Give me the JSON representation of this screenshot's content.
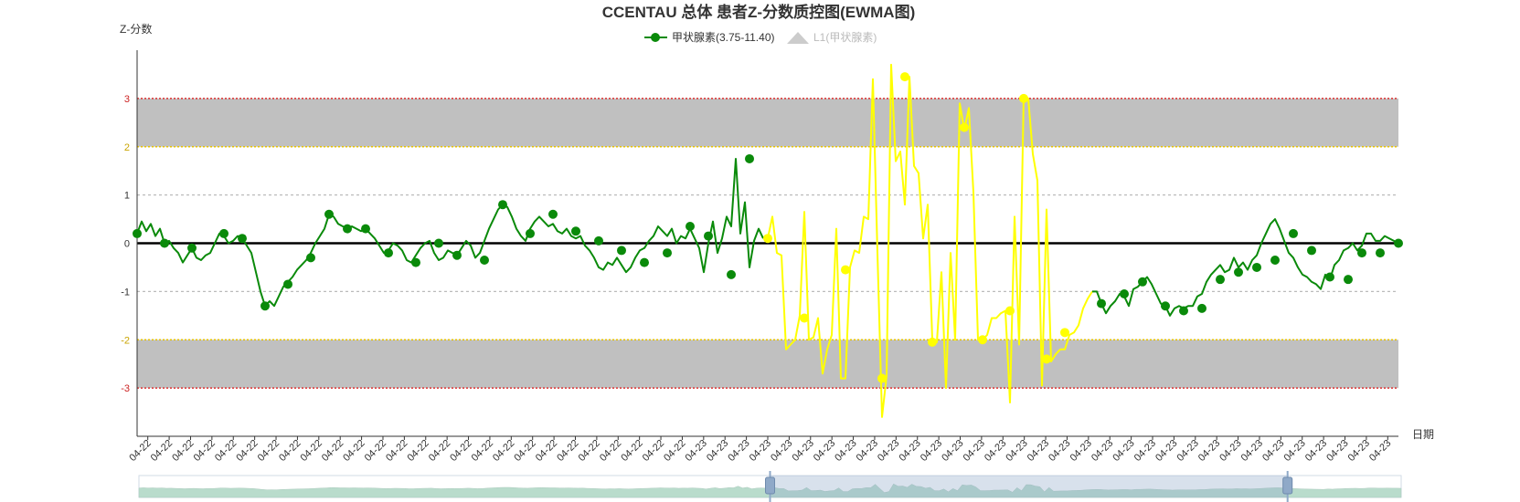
{
  "chart_data": {
    "type": "line",
    "title": "CCENTAU 总体 患者Z-分数质控图(EWMA图)",
    "ylabel": "Z-分数",
    "xlabel": "日期",
    "ylim": [
      -4,
      4
    ],
    "y_ticks": [
      -3,
      -2,
      -1,
      0,
      1,
      2,
      3
    ],
    "y_tick_labels": [
      "-3",
      "-2",
      "-1",
      "0",
      "1",
      "2",
      "3"
    ],
    "grid": "dashed horizontal at ±1; limit lines at ±2 (yellow) and ±3 (red)",
    "bands": [
      {
        "from": 2,
        "to": 3,
        "color": "#c0c0c0"
      },
      {
        "from": -3,
        "to": -2,
        "color": "#c0c0c0"
      }
    ],
    "limit_lines": [
      {
        "y": 3,
        "color": "#dd3333"
      },
      {
        "y": 2,
        "color": "#e6c200"
      },
      {
        "y": -2,
        "color": "#e6c200"
      },
      {
        "y": -3,
        "color": "#dd3333"
      }
    ],
    "center_line": {
      "y": 0,
      "color": "#000000"
    },
    "legend": {
      "placement": "top-center",
      "entries": [
        {
          "name": "甲状腺素(3.75-11.40)",
          "color": "#0a8a0a",
          "active": true
        },
        {
          "name": "L1(甲状腺素)",
          "color": "#cccccc",
          "active": false
        }
      ]
    },
    "x_tick_labels": [
      "04-22",
      "04-22",
      "04-22",
      "04-22",
      "04-22",
      "04-22",
      "04-22",
      "04-22",
      "04-22",
      "04-22",
      "04-22",
      "04-22",
      "04-22",
      "04-22",
      "04-22",
      "04-22",
      "04-22",
      "04-22",
      "04-22",
      "04-22",
      "04-22",
      "04-22",
      "04-22",
      "04-22",
      "04-22",
      "04-22",
      "04-23",
      "04-23",
      "04-23",
      "04-23",
      "04-23",
      "04-23",
      "04-23",
      "04-23",
      "04-23",
      "04-23",
      "04-23",
      "04-23",
      "04-23",
      "04-23",
      "04-23",
      "04-23",
      "04-23",
      "04-23",
      "04-23",
      "04-23",
      "04-23",
      "04-23",
      "04-23",
      "04-23",
      "04-23",
      "04-23",
      "04-23",
      "04-23",
      "04-23",
      "04-23",
      "04-23",
      "04-23",
      "04-23"
    ],
    "series": [
      {
        "name": "甲状腺素(3.75-11.40)",
        "color": "#0a8a0a",
        "values": [
          0.2,
          0.45,
          0.25,
          0.4,
          0.15,
          0.3,
          0.0,
          0.05,
          -0.1,
          -0.2,
          -0.4,
          -0.25,
          -0.1,
          -0.3,
          -0.35,
          -0.25,
          -0.2,
          0.0,
          0.2,
          0.15,
          0.0,
          0.05,
          0.15,
          0.1,
          -0.05,
          -0.2,
          -0.6,
          -1.0,
          -1.3,
          -1.2,
          -1.3,
          -1.1,
          -0.9,
          -0.8,
          -0.7,
          -0.55,
          -0.45,
          -0.35,
          -0.2,
          0.0,
          0.15,
          0.3,
          0.6,
          0.55,
          0.4,
          0.35,
          0.3,
          0.35,
          0.3,
          0.25,
          0.3,
          0.2,
          0.1,
          -0.05,
          -0.2,
          -0.15,
          0.0,
          -0.05,
          -0.15,
          -0.35,
          -0.4,
          -0.25,
          -0.1,
          0.0,
          0.05,
          -0.2,
          -0.35,
          -0.3,
          -0.15,
          -0.2,
          -0.25,
          -0.1,
          0.05,
          -0.05,
          -0.3,
          -0.2,
          0.05,
          0.3,
          0.5,
          0.7,
          0.8,
          0.75,
          0.55,
          0.3,
          0.15,
          0.05,
          0.3,
          0.45,
          0.55,
          0.45,
          0.35,
          0.4,
          0.25,
          0.2,
          0.3,
          0.15,
          0.1,
          0.15,
          -0.05,
          -0.15,
          -0.3,
          -0.5,
          -0.55,
          -0.4,
          -0.45,
          -0.3,
          -0.45,
          -0.6,
          -0.5,
          -0.3,
          -0.15,
          -0.1,
          0.05,
          0.15,
          0.35,
          0.25,
          0.15,
          0.3,
          0.0,
          0.15,
          0.1,
          0.3,
          0.1,
          -0.1,
          -0.6,
          0.0,
          0.45,
          -0.2,
          0.1,
          0.55,
          0.35,
          1.75,
          0.2,
          0.85,
          -0.5,
          0.05,
          0.3,
          0.1
        ]
      },
      {
        "name": "",
        "color": "#ffff00",
        "values": [
          0.1,
          0.55,
          -0.2,
          -0.25,
          -2.2,
          -2.1,
          -2.0,
          -1.5,
          0.65,
          -2.0,
          -1.95,
          -1.55,
          -2.7,
          -2.2,
          -1.9,
          0.3,
          -2.8,
          -2.8,
          -0.5,
          -0.15,
          -0.2,
          0.55,
          0.5,
          3.4,
          -0.2,
          -3.6,
          -2.75,
          3.7,
          1.7,
          1.9,
          0.8,
          3.45,
          1.6,
          1.45,
          0.1,
          0.8,
          -2.0,
          -2.05,
          -0.6,
          -3.0,
          -0.2,
          -2.0,
          2.9,
          2.35,
          2.8,
          1.05,
          -2.0,
          -2.0,
          -1.9,
          -1.55,
          -1.55,
          -1.45,
          -1.4,
          -3.3,
          0.55,
          -2.1,
          3.05,
          3.0,
          1.85,
          1.3,
          -2.95,
          0.7,
          -2.45,
          -2.3,
          -2.2,
          -2.2,
          -1.9,
          -1.85,
          -1.7,
          -1.35,
          -1.15,
          -1.0
        ]
      },
      {
        "name": "",
        "color": "#0a8a0a",
        "values": [
          -1.0,
          -1.25,
          -1.45,
          -1.3,
          -1.2,
          -1.05,
          -1.1,
          -1.3,
          -0.95,
          -0.9,
          -0.8,
          -0.7,
          -0.85,
          -1.05,
          -1.25,
          -1.3,
          -1.5,
          -1.35,
          -1.3,
          -1.35,
          -1.3,
          -1.3,
          -1.1,
          -1.05,
          -0.8,
          -0.65,
          -0.55,
          -0.45,
          -0.6,
          -0.55,
          -0.3,
          -0.5,
          -0.4,
          -0.55,
          -0.35,
          -0.25,
          0.0,
          0.2,
          0.4,
          0.5,
          0.3,
          0.05,
          -0.2,
          -0.3,
          -0.5,
          -0.65,
          -0.7,
          -0.8,
          -0.85,
          -0.95,
          -0.65,
          -0.75,
          -0.45,
          -0.35,
          -0.15,
          -0.1,
          0.0,
          -0.15,
          -0.05,
          0.2,
          0.2,
          0.05,
          0.05,
          0.15,
          0.1,
          0.05,
          0.0
        ]
      }
    ],
    "markers": [
      {
        "series": 0,
        "index": 0,
        "value": 0.2
      },
      {
        "series": 0,
        "index": 6,
        "value": 0.0
      },
      {
        "series": 0,
        "index": 12,
        "value": -0.1
      },
      {
        "series": 0,
        "index": 19,
        "value": 0.2
      },
      {
        "series": 0,
        "index": 23,
        "value": 0.1
      },
      {
        "series": 0,
        "index": 28,
        "value": -1.3
      },
      {
        "series": 0,
        "index": 33,
        "value": -0.85
      },
      {
        "series": 0,
        "index": 38,
        "value": -0.3
      },
      {
        "series": 0,
        "index": 42,
        "value": 0.6
      },
      {
        "series": 0,
        "index": 46,
        "value": 0.3
      },
      {
        "series": 0,
        "index": 50,
        "value": 0.3
      },
      {
        "series": 0,
        "index": 55,
        "value": -0.2
      },
      {
        "series": 0,
        "index": 61,
        "value": -0.4
      },
      {
        "series": 0,
        "index": 66,
        "value": 0.0
      },
      {
        "series": 0,
        "index": 70,
        "value": -0.25
      },
      {
        "series": 0,
        "index": 76,
        "value": -0.35
      },
      {
        "series": 0,
        "index": 80,
        "value": 0.8
      },
      {
        "series": 0,
        "index": 86,
        "value": 0.2
      },
      {
        "series": 0,
        "index": 91,
        "value": 0.6
      },
      {
        "series": 0,
        "index": 96,
        "value": 0.25
      },
      {
        "series": 0,
        "index": 101,
        "value": 0.05
      },
      {
        "series": 0,
        "index": 106,
        "value": -0.15
      },
      {
        "series": 0,
        "index": 111,
        "value": -0.4
      },
      {
        "series": 0,
        "index": 116,
        "value": -0.2
      },
      {
        "series": 0,
        "index": 121,
        "value": 0.35
      },
      {
        "series": 0,
        "index": 125,
        "value": 0.15
      },
      {
        "series": 0,
        "index": 130,
        "value": -0.65
      },
      {
        "series": 0,
        "index": 134,
        "value": 1.75
      },
      {
        "series": 1,
        "index": 0,
        "value": 0.1
      },
      {
        "series": 1,
        "index": 8,
        "value": -1.55
      },
      {
        "series": 1,
        "index": 17,
        "value": -0.55
      },
      {
        "series": 1,
        "index": 25,
        "value": -2.8
      },
      {
        "series": 1,
        "index": 30,
        "value": 3.45
      },
      {
        "series": 1,
        "index": 36,
        "value": -2.05
      },
      {
        "series": 1,
        "index": 43,
        "value": 2.4
      },
      {
        "series": 1,
        "index": 47,
        "value": -2.0
      },
      {
        "series": 1,
        "index": 53,
        "value": -1.4
      },
      {
        "series": 1,
        "index": 56,
        "value": 3.0
      },
      {
        "series": 1,
        "index": 61,
        "value": -2.4
      },
      {
        "series": 1,
        "index": 65,
        "value": -1.85
      },
      {
        "series": 2,
        "index": 1,
        "value": -1.25
      },
      {
        "series": 2,
        "index": 6,
        "value": -1.05
      },
      {
        "series": 2,
        "index": 10,
        "value": -0.8
      },
      {
        "series": 2,
        "index": 15,
        "value": -1.3
      },
      {
        "series": 2,
        "index": 19,
        "value": -1.4
      },
      {
        "series": 2,
        "index": 23,
        "value": -1.35
      },
      {
        "series": 2,
        "index": 27,
        "value": -0.75
      },
      {
        "series": 2,
        "index": 31,
        "value": -0.6
      },
      {
        "series": 2,
        "index": 35,
        "value": -0.5
      },
      {
        "series": 2,
        "index": 39,
        "value": -0.35
      },
      {
        "series": 2,
        "index": 43,
        "value": 0.2
      },
      {
        "series": 2,
        "index": 47,
        "value": -0.15
      },
      {
        "series": 2,
        "index": 51,
        "value": -0.7
      },
      {
        "series": 2,
        "index": 55,
        "value": -0.75
      },
      {
        "series": 2,
        "index": 58,
        "value": -0.2
      },
      {
        "series": 2,
        "index": 62,
        "value": -0.2
      },
      {
        "series": 2,
        "index": 66,
        "value": 0.0
      }
    ],
    "data_zoom": {
      "start_fraction": 0.5,
      "end_fraction": 0.91
    }
  }
}
